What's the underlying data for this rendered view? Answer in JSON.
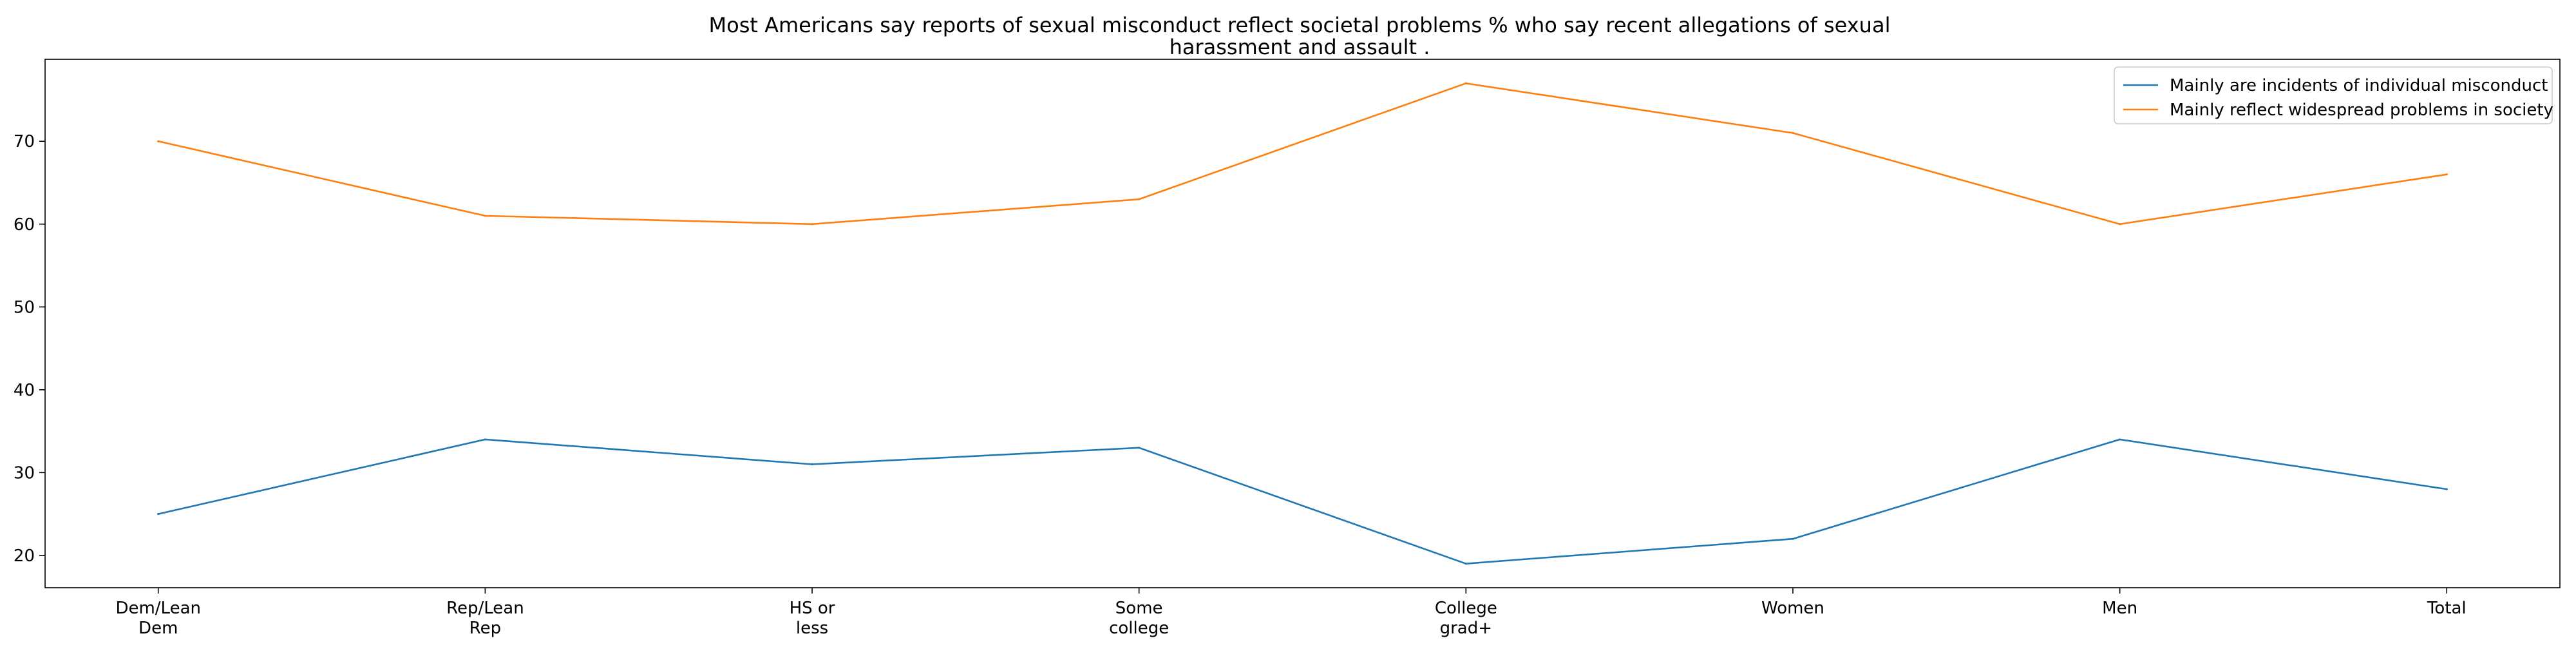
{
  "chart_data": {
    "type": "line",
    "title": "Most Americans say reports of sexual misconduct reflect societal problems % who say recent allegations of sexual harassment and assault .",
    "title_lines": [
      "Most Americans say reports of sexual misconduct reflect societal problems % who say recent allegations of sexual",
      "harassment and assault ."
    ],
    "xlabel": "",
    "ylabel": "",
    "categories": [
      [
        "Dem/Lean",
        "Dem"
      ],
      [
        "Rep/Lean",
        "Rep"
      ],
      [
        "HS or",
        "less"
      ],
      [
        "Some",
        "college"
      ],
      [
        "College",
        "grad+"
      ],
      [
        "Women"
      ],
      [
        "Men"
      ],
      [
        "Total"
      ]
    ],
    "series": [
      {
        "name": "Mainly are incidents of individual misconduct",
        "color": "#1f77b4",
        "values": [
          25,
          34,
          31,
          33,
          19,
          22,
          34,
          28
        ]
      },
      {
        "name": "Mainly reflect widespread problems in society",
        "color": "#ff7f0e",
        "values": [
          70,
          61,
          60,
          63,
          77,
          71,
          60,
          66
        ]
      }
    ],
    "ylim": [
      16.1,
      79.9
    ],
    "yticks": [
      20,
      30,
      40,
      50,
      60,
      70
    ],
    "grid": false,
    "legend_position": "top-right"
  }
}
